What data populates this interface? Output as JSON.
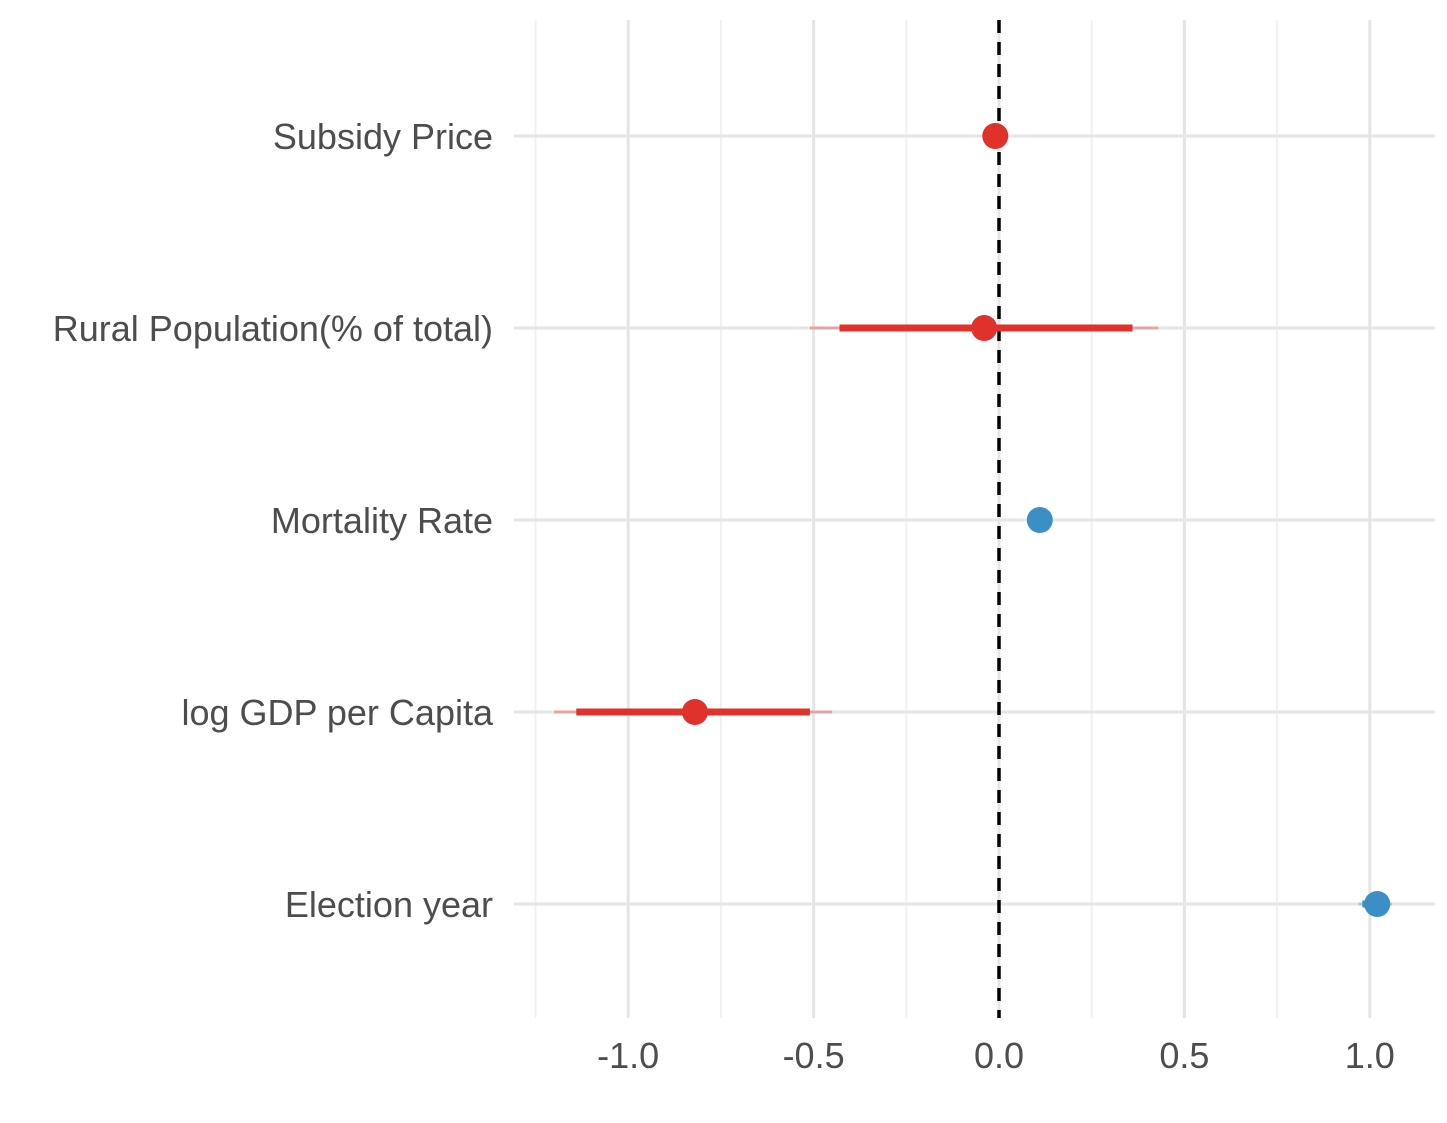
{
  "chart_data": {
    "type": "scatter",
    "subtype": "coefficient-plot",
    "title": "",
    "xlabel": "",
    "ylabel": "",
    "xlim": [
      -1.25,
      1.18
    ],
    "x_ticks": [
      -1.0,
      -0.5,
      0.0,
      0.5,
      1.0
    ],
    "x_tick_labels": [
      "-1.0",
      "-0.5",
      "0.0",
      "0.5",
      "1.0"
    ],
    "x_minor_ticks": [
      -1.25,
      -0.75,
      -0.25,
      0.25,
      0.75
    ],
    "reference_line": {
      "x": 0,
      "style": "dashed",
      "color": "#000000"
    },
    "grid": true,
    "legend": "none",
    "colors": {
      "negative": "#e0312a",
      "positive": "#3a8fc4",
      "outer_ci_alpha": 0.35
    },
    "categories": [
      "Subsidy Price",
      "Rural Population(% of total)",
      "Mortality Rate",
      "log GDP per Capita",
      "Election year"
    ],
    "points": [
      {
        "label": "Subsidy Price",
        "estimate": -0.01,
        "ci_inner": [
          -0.02,
          0.0
        ],
        "ci_outer": [
          -0.025,
          0.005
        ],
        "sign": "negative"
      },
      {
        "label": "Rural Population(% of total)",
        "estimate": -0.04,
        "ci_inner": [
          -0.43,
          0.36
        ],
        "ci_outer": [
          -0.51,
          0.43
        ],
        "sign": "negative"
      },
      {
        "label": "Mortality Rate",
        "estimate": 0.11,
        "ci_inner": [
          0.1,
          0.12
        ],
        "ci_outer": [
          0.095,
          0.125
        ],
        "sign": "positive"
      },
      {
        "label": "log GDP per Capita",
        "estimate": -0.82,
        "ci_inner": [
          -1.14,
          -0.51
        ],
        "ci_outer": [
          -1.2,
          -0.45
        ],
        "sign": "negative"
      },
      {
        "label": "Election year",
        "estimate": 1.02,
        "ci_inner": [
          0.98,
          1.05
        ],
        "ci_outer": [
          0.97,
          1.06
        ],
        "sign": "positive"
      }
    ]
  }
}
